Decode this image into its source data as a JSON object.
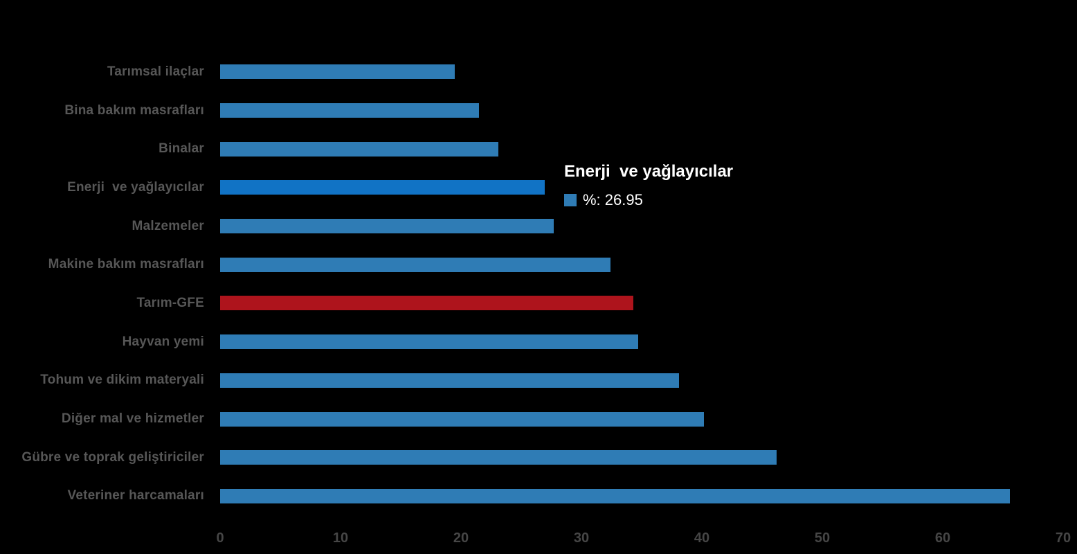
{
  "chart_data": {
    "type": "bar",
    "orientation": "horizontal",
    "title": "",
    "xlabel": "",
    "ylabel": "",
    "xlim": [
      0,
      70
    ],
    "x_ticks": [
      0,
      10,
      20,
      30,
      40,
      50,
      60,
      70
    ],
    "grid": false,
    "legend_position": "none",
    "unit": "%",
    "categories": [
      "Tarımsal ilaçlar",
      "Bina bakım masrafları",
      "Binalar",
      "Enerji  ve yağlayıcılar",
      "Malzemeler",
      "Makine bakım masrafları",
      "Tarım-GFE",
      "Hayvan yemi",
      "Tohum ve dikim materyali",
      "Diğer mal ve hizmetler",
      "Gübre ve toprak geliştiriciler",
      "Veteriner harcamaları"
    ],
    "values": [
      19.5,
      21.5,
      23.1,
      26.95,
      27.7,
      32.4,
      34.3,
      34.7,
      38.1,
      40.2,
      46.2,
      65.6
    ],
    "color_roles": [
      "default",
      "default",
      "default",
      "highlight",
      "default",
      "default",
      "emphasis",
      "default",
      "default",
      "default",
      "default",
      "default"
    ],
    "colors": {
      "default": "#2F7CB5",
      "highlight": "#1173C5",
      "emphasis": "#AE141C"
    },
    "highlighted_category": "Enerji  ve yağlayıcılar",
    "emphasis_category": "Tarım-GFE"
  },
  "tooltip": {
    "title": "Enerji  ve yağlayıcılar",
    "value_text": "%: 26.95",
    "swatch_color": "#2F7CB5"
  },
  "text_colors": {
    "category_label": "#575757",
    "tick_label": "#464646",
    "tooltip_text": "#ffffff"
  },
  "background_color": "#000000"
}
